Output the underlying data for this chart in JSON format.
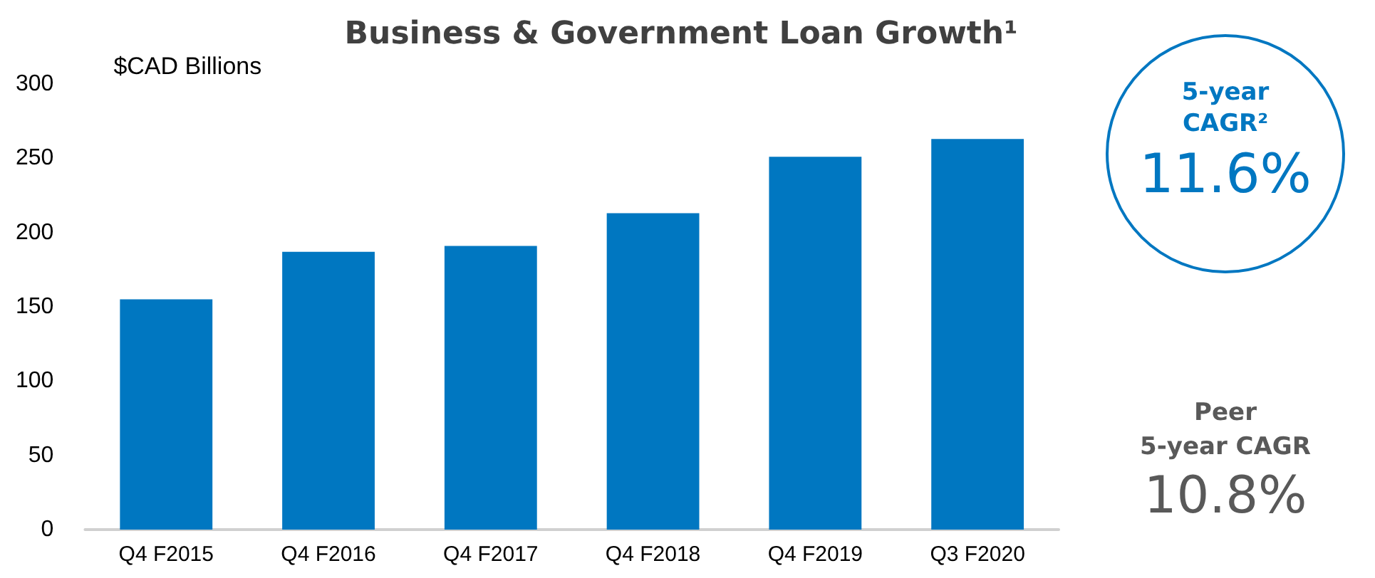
{
  "chart_data": {
    "type": "bar",
    "title": "Business & Government Loan Growth¹",
    "ylabel": "$CAD Billions",
    "categories": [
      "Q4 F2015",
      "Q4 F2016",
      "Q4 F2017",
      "Q4 F2018",
      "Q4 F2019",
      "Q3 F2020"
    ],
    "values": [
      155,
      187,
      191,
      213,
      251,
      263
    ],
    "color": "#0077c1",
    "ylim": [
      0,
      300
    ],
    "yticks": [
      0,
      50,
      100,
      150,
      200,
      250,
      300
    ],
    "grid": false,
    "annotations": [
      "5-year CAGR²",
      "11.6%",
      "Peer 5-year CAGR",
      "10.8%"
    ]
  }
}
